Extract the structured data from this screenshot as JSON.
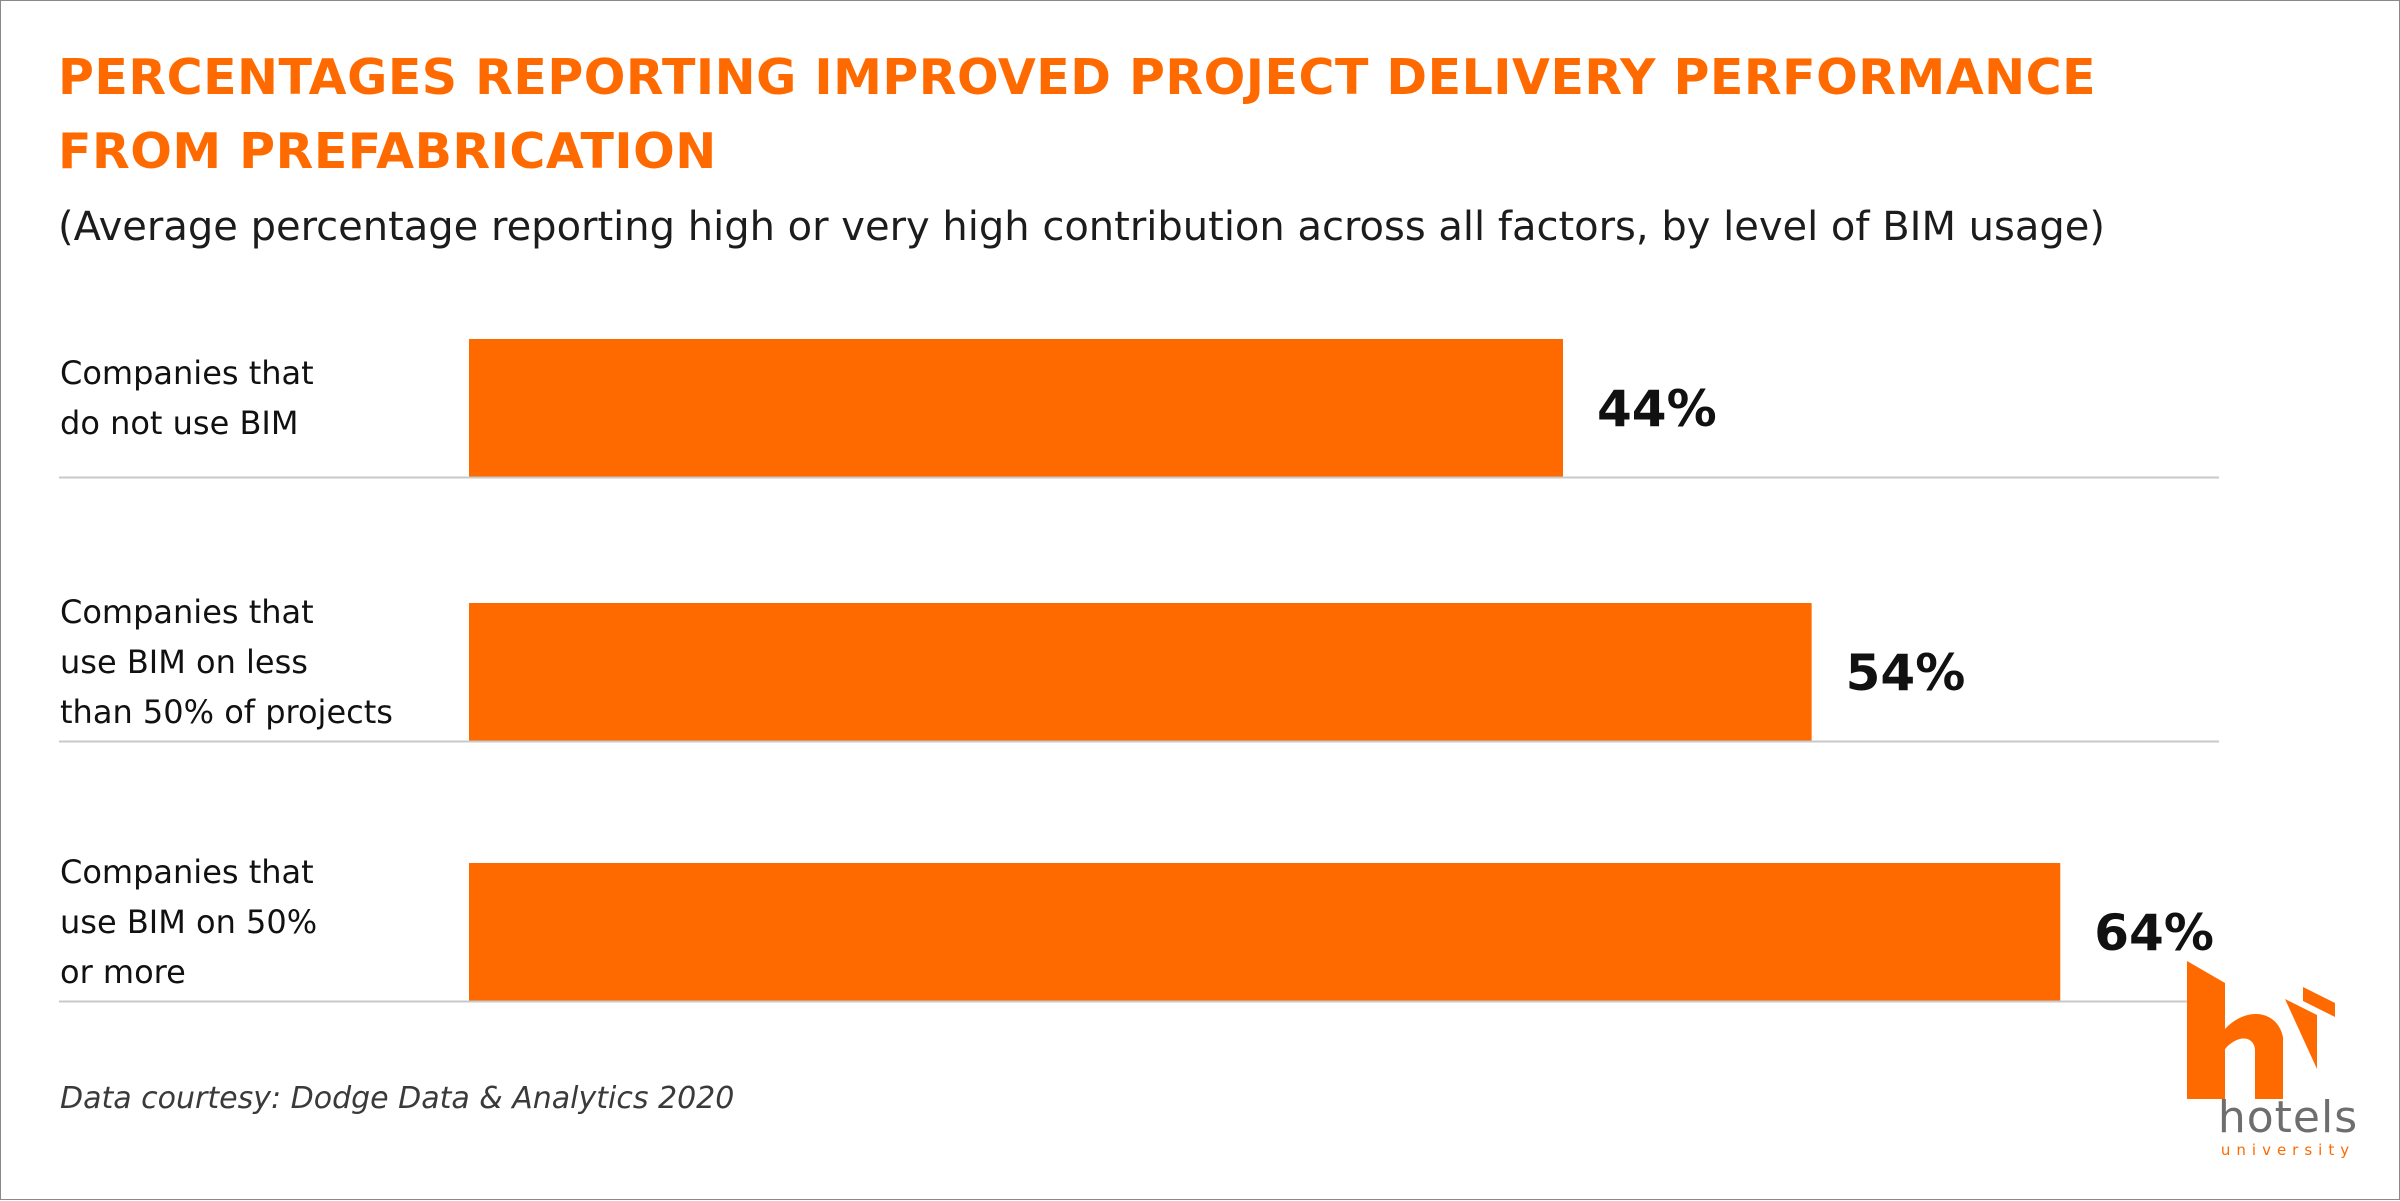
{
  "title_lines": [
    "PERCENTAGES REPORTING IMPROVED PROJECT DELIVERY PERFORMANCE",
    "FROM PREFABRICATION"
  ],
  "subtitle": "(Average percentage reporting high or very high contribution across all factors, by level of BIM usage)",
  "source": "Data courtesy: Dodge Data & Analytics 2020",
  "logo": {
    "word": "hotels",
    "sub": "university",
    "icon": "hu-logo-icon"
  },
  "colors": {
    "bar": "#ff6a00",
    "title": "#ff6a00",
    "divider": "#c8c8c8",
    "text": "#111111"
  },
  "chart_data": {
    "type": "bar",
    "orientation": "horizontal",
    "categories": [
      [
        "Companies that",
        "do not use BIM"
      ],
      [
        "Companies that",
        "use BIM on less",
        "than 50% of projects"
      ],
      [
        "Companies that",
        "use BIM on 50%",
        "or more"
      ]
    ],
    "values": [
      44,
      54,
      64
    ],
    "value_labels": [
      "44%",
      "54%",
      "64%"
    ],
    "unit": "%",
    "xlim": [
      0,
      100
    ],
    "grid": false,
    "legend": "none"
  }
}
